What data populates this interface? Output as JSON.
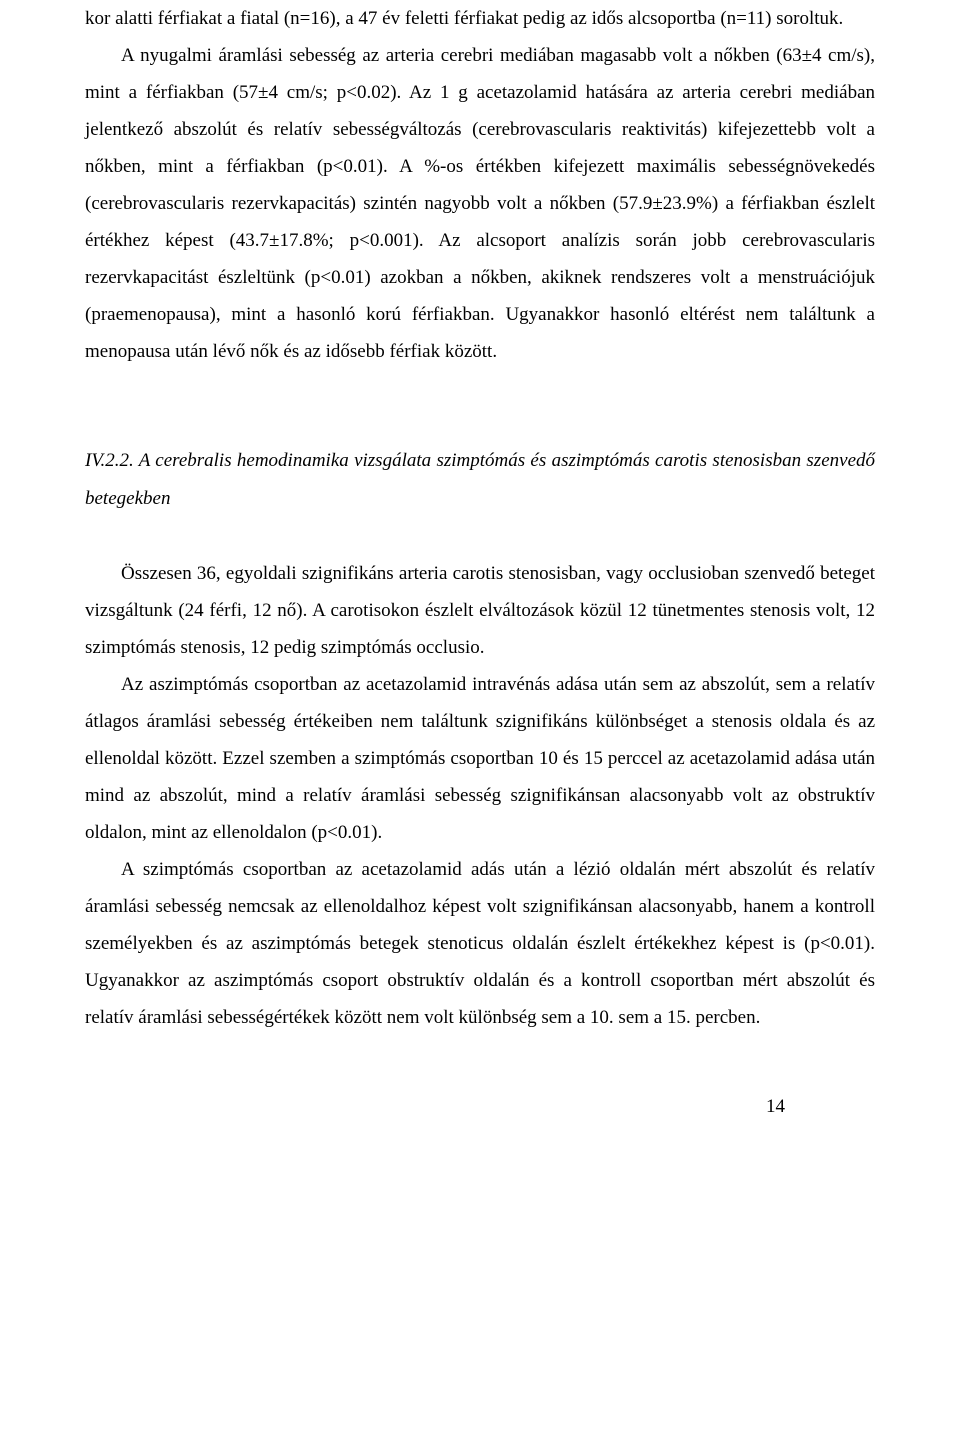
{
  "p1": "kor alatti férfiakat a fiatal (n=16), a 47 év feletti férfiakat pedig az idős alcsoportba (n=11) soroltuk.",
  "p2": "A nyugalmi áramlási sebesség az arteria cerebri mediában magasabb volt a nőkben (63±4 cm/s), mint a férfiakban (57±4 cm/s; p<0.02). Az 1 g acetazolamid hatására az arteria cerebri mediában jelentkező abszolút és relatív sebességváltozás (cerebrovascularis reaktivitás) kifejezettebb volt a nőkben, mint a férfiakban (p<0.01). A %-os értékben kifejezett maximális sebességnövekedés (cerebrovascularis rezervkapacitás) szintén nagyobb volt a nőkben (57.9±23.9%) a férfiakban észlelt értékhez képest (43.7±17.8%; p<0.001). Az alcsoport analízis során jobb cerebrovascularis rezervkapacitást észleltünk (p<0.01) azokban a nőkben, akiknek rendszeres volt a menstruációjuk (praemenopausa), mint a hasonló korú férfiakban. Ugyanakkor hasonló eltérést nem találtunk a menopausa után lévő nők és az idősebb férfiak között.",
  "heading": "IV.2.2. A cerebralis hemodinamika vizsgálata szimptómás és aszimptómás carotis stenosisban szenvedő betegekben",
  "p3": "Összesen 36, egyoldali szignifikáns arteria carotis stenosisban, vagy occlusioban szenvedő beteget vizsgáltunk (24 férfi, 12 nő). A carotisokon észlelt elváltozások közül 12 tünetmentes stenosis volt, 12 szimptómás stenosis, 12 pedig szimptómás occlusio.",
  "p4": "Az aszimptómás csoportban az acetazolamid intravénás adása után sem az abszolút, sem a relatív átlagos áramlási sebesség értékeiben nem találtunk szignifikáns különbséget a stenosis oldala és az ellenoldal között. Ezzel szemben a szimptómás csoportban 10 és 15 perccel az acetazolamid adása után mind az abszolút, mind a relatív áramlási sebesség szignifikánsan alacsonyabb volt az obstruktív oldalon, mint az ellenoldalon (p<0.01).",
  "p5": "A szimptómás csoportban az acetazolamid adás után a lézió oldalán mért abszolút és relatív áramlási sebesség nemcsak az ellenoldalhoz képest volt szignifikánsan alacsonyabb, hanem a kontroll személyekben és az aszimptómás betegek stenoticus oldalán észlelt értékekhez képest is (p<0.01). Ugyanakkor az aszimptómás csoport obstruktív oldalán és a kontroll csoportban mért abszolút és relatív áramlási sebességértékek között nem volt különbség sem a 10. sem a 15. percben.",
  "page": "14"
}
